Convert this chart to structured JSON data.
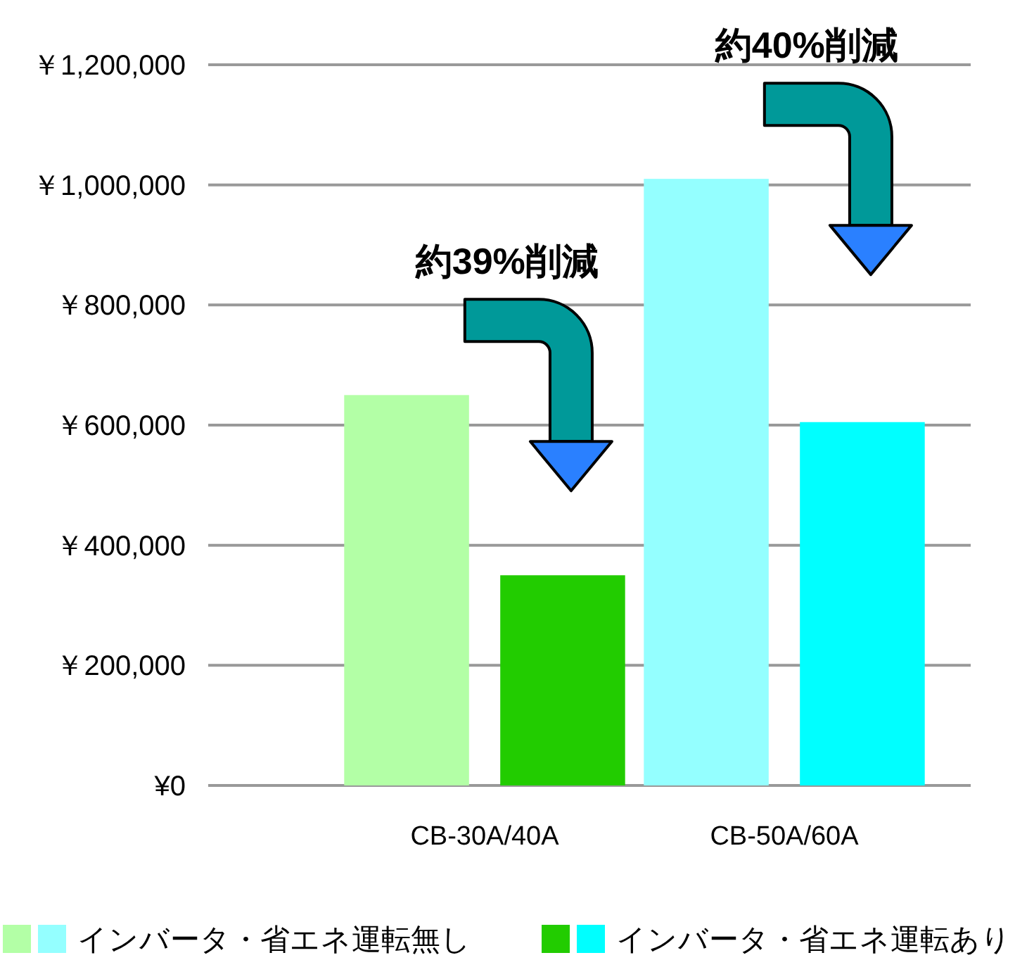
{
  "chart_data": {
    "type": "bar",
    "categories": [
      "CB-30A/40A",
      "CB-50A/60A"
    ],
    "series": [
      {
        "name": "インバータ・省エネ運転無し",
        "colors": [
          "#b3ffa6",
          "#94ffff"
        ],
        "values": [
          650000,
          1010000
        ]
      },
      {
        "name": "インバータ・省エネ運転あり",
        "colors": [
          "#22cc00",
          "#00ffff"
        ],
        "values": [
          350000,
          605000
        ]
      }
    ],
    "ylim": [
      0,
      1200000
    ],
    "yticks": [
      {
        "value": 0,
        "label": "¥0"
      },
      {
        "value": 200000,
        "label": "￥200,000"
      },
      {
        "value": 400000,
        "label": "￥400,000"
      },
      {
        "value": 600000,
        "label": "￥600,000"
      },
      {
        "value": 800000,
        "label": "￥800,000"
      },
      {
        "value": 1000000,
        "label": "￥1,000,000"
      },
      {
        "value": 1200000,
        "label": "￥1,200,000"
      }
    ],
    "grid": "y",
    "legend": "bottom",
    "annotations": [
      "約39%削減",
      "約40%削減"
    ]
  }
}
